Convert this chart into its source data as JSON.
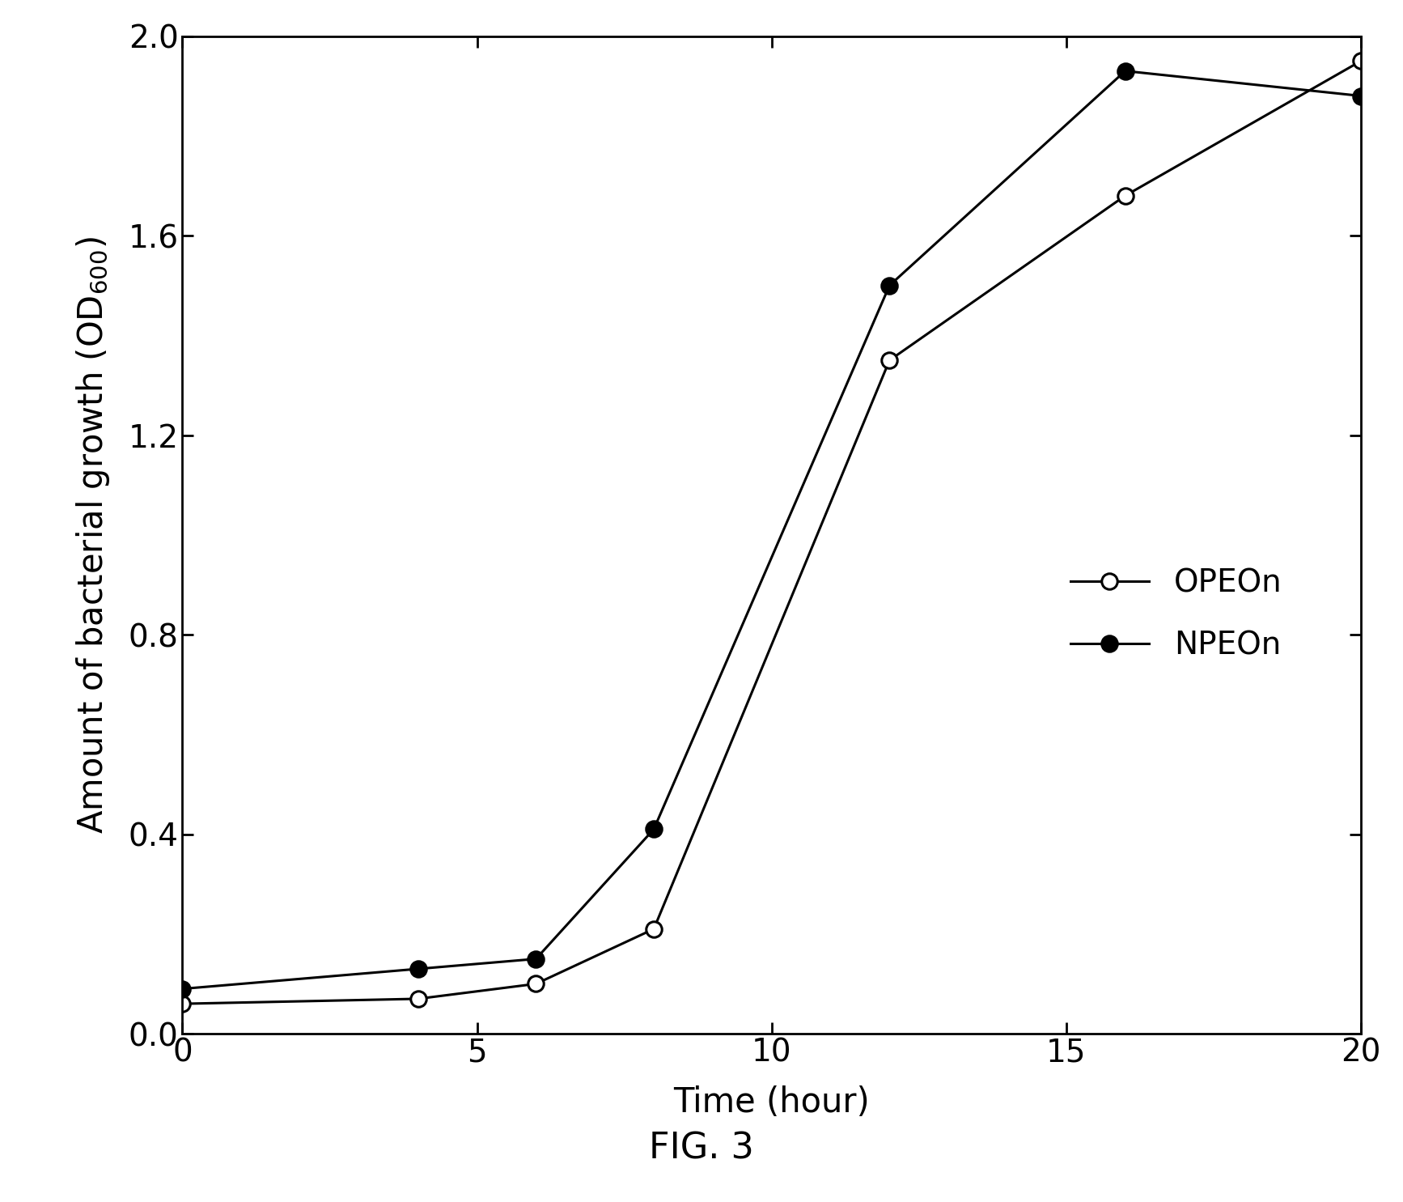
{
  "OPEOn_x": [
    0,
    4,
    6,
    8,
    12,
    16,
    20
  ],
  "OPEOn_y": [
    0.06,
    0.07,
    0.1,
    0.21,
    1.35,
    1.68,
    1.95
  ],
  "NPEOn_x": [
    0,
    4,
    6,
    8,
    12,
    16,
    20
  ],
  "NPEOn_y": [
    0.09,
    0.13,
    0.15,
    0.41,
    1.5,
    1.93,
    1.88
  ],
  "xlabel": "Time (hour)",
  "legend_OPEOn": "OPEOn",
  "legend_NPEOn": "NPEOn",
  "caption": "FIG. 3",
  "xlim": [
    0,
    20
  ],
  "ylim": [
    0.0,
    2.0
  ],
  "xticks": [
    0,
    5,
    10,
    15,
    20
  ],
  "yticks": [
    0.0,
    0.4,
    0.8,
    1.2,
    1.6,
    2.0
  ],
  "background_color": "#ffffff",
  "line_color": "#000000",
  "fontsize_ticks": 28,
  "fontsize_label": 30,
  "fontsize_legend": 28,
  "fontsize_caption": 32,
  "linewidth": 2.2,
  "markersize": 14
}
